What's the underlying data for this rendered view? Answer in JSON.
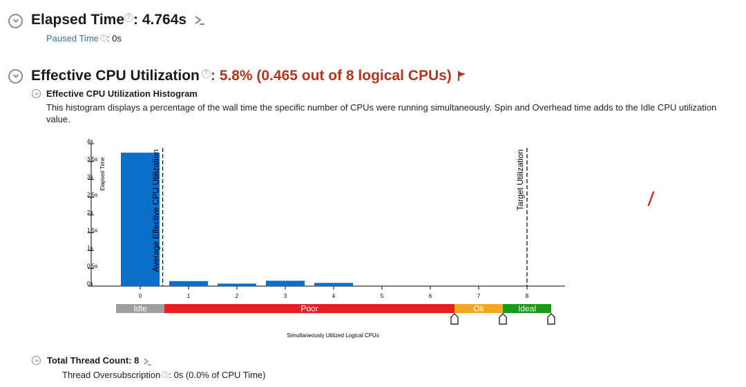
{
  "elapsed": {
    "label": "Elapsed Time",
    "value": ": 4.764s",
    "paused_label": "Paused Time",
    "paused_value": ": 0s"
  },
  "cpu": {
    "label": "Effective CPU Utilization",
    "value": ": 5.8% (0.465 out of 8 logical CPUs)",
    "histogram_title": "Effective CPU Utilization Histogram",
    "histogram_desc": "This histogram displays a percentage of the wall time the specific number of CPUs were running simultaneously. Spin and Overhead time adds to the Idle CPU utilization value."
  },
  "threads": {
    "label": "Total Thread Count: 8",
    "oversub_label": "Thread Oversubscription",
    "oversub_value": ": 0s (0.0% of CPU Time)"
  },
  "colors": {
    "bar": "#0a6fc8",
    "idle": "#9e9e9e",
    "poor": "#ee1d24",
    "ok": "#f5a623",
    "ideal": "#169c15",
    "accent_red": "#b5341b"
  },
  "icons": [
    "chevron-down-circle-icon",
    "help-icon",
    "chevron-right-icon",
    "flag-icon"
  ],
  "chart_data": {
    "type": "bar",
    "xlabel": "Simultaneously Utilized Logical CPUs",
    "ylabel": "Elapsed Time",
    "categories": [
      "0",
      "1",
      "2",
      "3",
      "4",
      "5",
      "6",
      "7",
      "8"
    ],
    "values": [
      3.75,
      0.14,
      0.07,
      0.15,
      0.09,
      0,
      0,
      0,
      0
    ],
    "y_ticks": [
      "0s",
      "0.5s",
      "1s",
      "1.5s",
      "2s",
      "2.5s",
      "3s",
      "3.5s",
      "4s"
    ],
    "ylim": [
      0,
      4
    ],
    "average_marker": {
      "x": 0.465,
      "label": "Average Effective CPU Utilization"
    },
    "target_marker": {
      "x": 8,
      "label": "Target Utilization"
    },
    "ranges": [
      {
        "label": "Idle",
        "from": -0.5,
        "to": 0.5,
        "color": "#9e9e9e"
      },
      {
        "label": "Poor",
        "from": 0.5,
        "to": 6.5,
        "color": "#ee1d24"
      },
      {
        "label": "Ok",
        "from": 6.5,
        "to": 7.5,
        "color": "#f5a623"
      },
      {
        "label": "Ideal",
        "from": 7.5,
        "to": 8.5,
        "color": "#169c15"
      }
    ]
  }
}
